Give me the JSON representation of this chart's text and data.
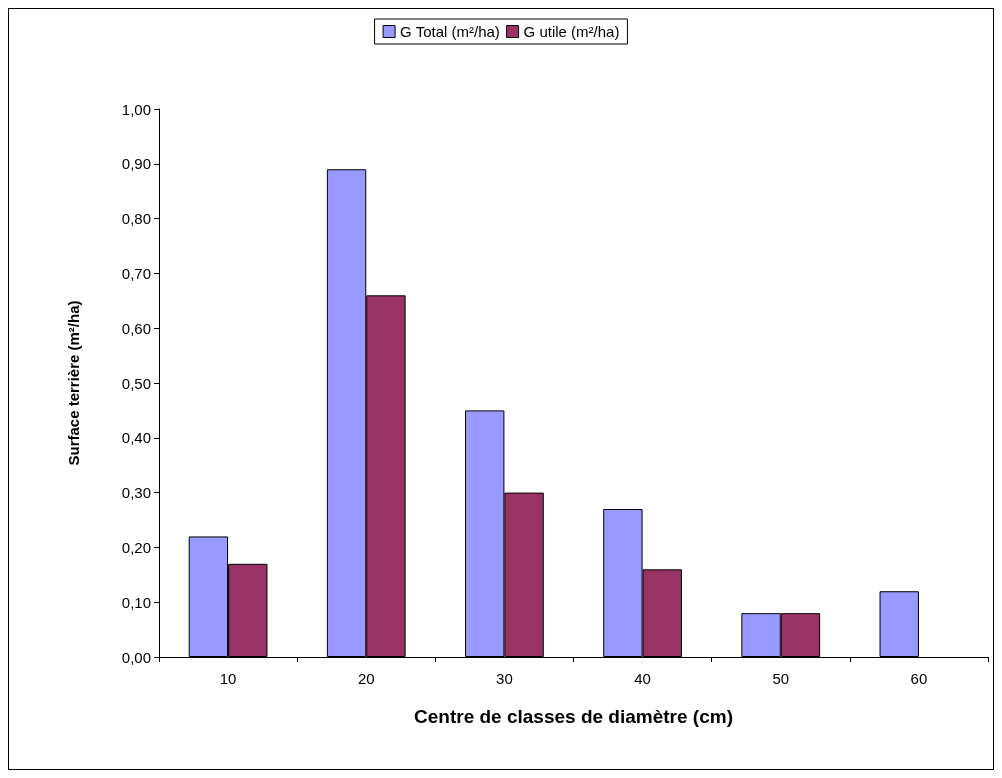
{
  "chart_data": {
    "type": "bar",
    "xlabel": "Centre de classes de diamètre (cm)",
    "ylabel": "Surface terrière (m²/ha)",
    "categories": [
      "10",
      "20",
      "30",
      "40",
      "50",
      "60"
    ],
    "series": [
      {
        "name": "G Total (m²/ha)",
        "color": "#9999ff",
        "values": [
          0.22,
          0.89,
          0.45,
          0.27,
          0.08,
          0.12
        ]
      },
      {
        "name": "G utile (m²/ha)",
        "color": "#993366",
        "values": [
          0.17,
          0.66,
          0.3,
          0.16,
          0.08,
          null
        ]
      }
    ],
    "ylim": [
      0,
      1
    ],
    "yticks": [
      {
        "value": 0,
        "label": "0,00"
      },
      {
        "value": 0.1,
        "label": "0,10"
      },
      {
        "value": 0.2,
        "label": "0,20"
      },
      {
        "value": 0.3,
        "label": "0,30"
      },
      {
        "value": 0.4,
        "label": "0,40"
      },
      {
        "value": 0.5,
        "label": "0,50"
      },
      {
        "value": 0.6,
        "label": "0,60"
      },
      {
        "value": 0.7,
        "label": "0,70"
      },
      {
        "value": 0.8,
        "label": "0,80"
      },
      {
        "value": 0.9,
        "label": "0,90"
      },
      {
        "value": 1,
        "label": "1,00"
      }
    ],
    "grid": false,
    "legend": "top"
  }
}
